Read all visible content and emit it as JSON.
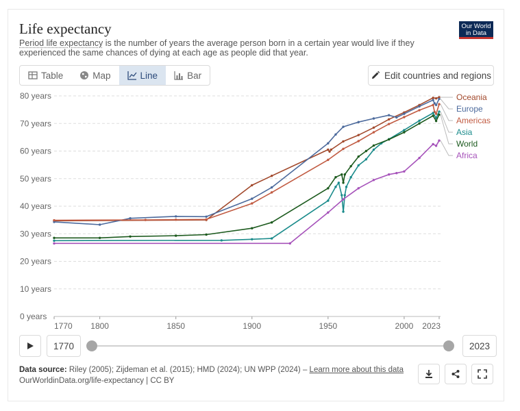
{
  "header": {
    "title": "Life expectancy",
    "subtitle_link": "Period life expectancy",
    "subtitle_rest": " is the number of years the average person born in a certain year would live if they experienced the same chances of dying at each age as people did that year.",
    "logo_line1": "Our World",
    "logo_line2": "in Data"
  },
  "tabs": [
    {
      "label": "Table",
      "icon": "table-icon",
      "active": false
    },
    {
      "label": "Map",
      "icon": "globe-icon",
      "active": false
    },
    {
      "label": "Line",
      "icon": "line-chart-icon",
      "active": true
    },
    {
      "label": "Bar",
      "icon": "bar-chart-icon",
      "active": false
    }
  ],
  "edit_button": {
    "label": "Edit countries and regions",
    "icon": "pencil-icon"
  },
  "timeline": {
    "start_label": "1770",
    "end_label": "2023",
    "start_position": 0,
    "end_position": 1
  },
  "footer": {
    "source_label": "Data source:",
    "source_text": " Riley (2005); Zijdeman et al. (2015); HMD (2024); UN WPP (2024) – ",
    "learn_more": "Learn more about this data",
    "credit": "OurWorldinData.org/life-expectancy | CC BY"
  },
  "chart_data": {
    "type": "line",
    "title": "Life expectancy",
    "y_tick_labels": [
      "0 years",
      "10 years",
      "20 years",
      "30 years",
      "40 years",
      "50 years",
      "60 years",
      "70 years",
      "80 years"
    ],
    "y_ticks": [
      0,
      10,
      20,
      30,
      40,
      50,
      60,
      70,
      80
    ],
    "x_ticks": [
      1770,
      1800,
      1850,
      1900,
      1950,
      2000,
      2023
    ],
    "xlim": [
      1770,
      2023
    ],
    "ylim": [
      0,
      80
    ],
    "grid": "horizontal dashed",
    "legend_placement": "right, end of lines",
    "series": [
      {
        "name": "Oceania",
        "color": "#a2492c",
        "points": [
          [
            1770,
            34.7
          ],
          [
            1870,
            35
          ],
          [
            1900,
            47.6
          ],
          [
            1913,
            51
          ],
          [
            1950,
            60.5
          ],
          [
            1951,
            59.8
          ],
          [
            1952,
            60.5
          ],
          [
            1960,
            63.5
          ],
          [
            1970,
            65.8
          ],
          [
            1980,
            68.5
          ],
          [
            1990,
            71.5
          ],
          [
            2000,
            74
          ],
          [
            2010,
            76.7
          ],
          [
            2019,
            79.3
          ],
          [
            2021,
            79.1
          ],
          [
            2023,
            79.5
          ]
        ]
      },
      {
        "name": "Europe",
        "color": "#4c6a9c",
        "points": [
          [
            1770,
            34.3
          ],
          [
            1800,
            33.3
          ],
          [
            1820,
            35.6
          ],
          [
            1850,
            36.3
          ],
          [
            1870,
            36.2
          ],
          [
            1900,
            42.7
          ],
          [
            1913,
            46.8
          ],
          [
            1950,
            62.8
          ],
          [
            1955,
            66
          ],
          [
            1960,
            68.8
          ],
          [
            1970,
            70.5
          ],
          [
            1980,
            71.8
          ],
          [
            1990,
            73
          ],
          [
            1995,
            72.2
          ],
          [
            2000,
            73.5
          ],
          [
            2010,
            76.2
          ],
          [
            2019,
            78.5
          ],
          [
            2020,
            77.3
          ],
          [
            2021,
            76.7
          ],
          [
            2023,
            78.9
          ]
        ]
      },
      {
        "name": "Americas",
        "color": "#c15b42",
        "points": [
          [
            1770,
            34.9
          ],
          [
            1830,
            35
          ],
          [
            1850,
            35.1
          ],
          [
            1870,
            35.2
          ],
          [
            1900,
            41
          ],
          [
            1913,
            45
          ],
          [
            1950,
            56.8
          ],
          [
            1960,
            60.8
          ],
          [
            1970,
            63.6
          ],
          [
            1980,
            66.8
          ],
          [
            1990,
            69.8
          ],
          [
            2000,
            72.3
          ],
          [
            2010,
            74.8
          ],
          [
            2019,
            76.7
          ],
          [
            2020,
            74.2
          ],
          [
            2021,
            73.5
          ],
          [
            2023,
            77
          ]
        ]
      },
      {
        "name": "Asia",
        "color": "#1a8b8b",
        "points": [
          [
            1770,
            27.5
          ],
          [
            1880,
            27.6
          ],
          [
            1900,
            28
          ],
          [
            1913,
            28.3
          ],
          [
            1950,
            42
          ],
          [
            1955,
            47
          ],
          [
            1957,
            48.5
          ],
          [
            1959,
            44
          ],
          [
            1960,
            38
          ],
          [
            1961,
            44
          ],
          [
            1962,
            47
          ],
          [
            1965,
            50.5
          ],
          [
            1970,
            54.8
          ],
          [
            1975,
            57
          ],
          [
            1980,
            60.5
          ],
          [
            1985,
            62.8
          ],
          [
            1990,
            64.3
          ],
          [
            2000,
            67.6
          ],
          [
            2010,
            71
          ],
          [
            2019,
            73.8
          ],
          [
            2021,
            72
          ],
          [
            2023,
            74.3
          ]
        ]
      },
      {
        "name": "World",
        "color": "#1c5a1e",
        "points": [
          [
            1770,
            28.5
          ],
          [
            1800,
            28.5
          ],
          [
            1820,
            29
          ],
          [
            1850,
            29.3
          ],
          [
            1870,
            29.7
          ],
          [
            1900,
            32
          ],
          [
            1913,
            34.1
          ],
          [
            1950,
            46.5
          ],
          [
            1955,
            50.5
          ],
          [
            1959,
            51.5
          ],
          [
            1960,
            48.5
          ],
          [
            1961,
            51.5
          ],
          [
            1965,
            54.5
          ],
          [
            1970,
            58
          ],
          [
            1975,
            60
          ],
          [
            1980,
            62
          ],
          [
            1990,
            64.2
          ],
          [
            2000,
            66.8
          ],
          [
            2010,
            70
          ],
          [
            2019,
            72.8
          ],
          [
            2021,
            70.9
          ],
          [
            2023,
            73.2
          ]
        ]
      },
      {
        "name": "Africa",
        "color": "#a652ba",
        "points": [
          [
            1770,
            26.5
          ],
          [
            1925,
            26.5
          ],
          [
            1950,
            37.7
          ],
          [
            1960,
            42.5
          ],
          [
            1970,
            46.5
          ],
          [
            1980,
            49.5
          ],
          [
            1990,
            51.5
          ],
          [
            1995,
            52
          ],
          [
            2000,
            52.6
          ],
          [
            2010,
            57.5
          ],
          [
            2019,
            62.5
          ],
          [
            2021,
            61.9
          ],
          [
            2023,
            63.8
          ]
        ]
      }
    ]
  }
}
